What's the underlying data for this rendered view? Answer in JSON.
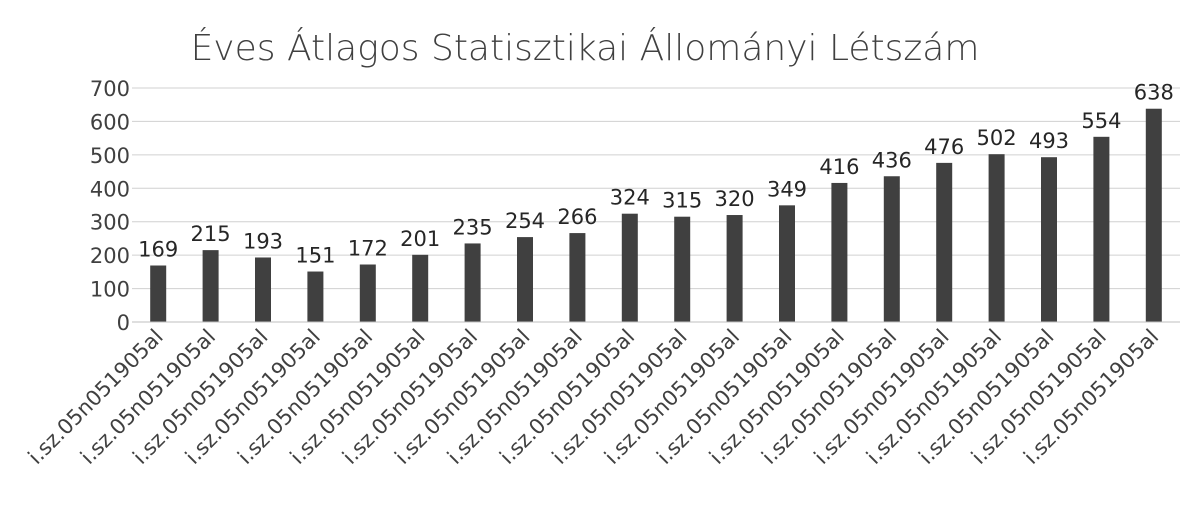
{
  "chart_data": {
    "type": "bar",
    "title": "Éves Átlagos Statisztikai Állományi Létszám",
    "xlabel": "",
    "ylabel": "",
    "categories": [
      "i.sz.05n051905al",
      "i.sz.05n051905al",
      "i.sz.05n051905al",
      "i.sz.05n051905al",
      "i.sz.05n051905al",
      "i.sz.05n051905al",
      "i.sz.05n051905al",
      "i.sz.05n051905al",
      "i.sz.05n051905al",
      "i.sz.05n051905al",
      "i.sz.05n051905al",
      "i.sz.05n051905al",
      "i.sz.05n051905al",
      "i.sz.05n051905al",
      "i.sz.05n051905al",
      "i.sz.05n051905al",
      "i.sz.05n051905al",
      "i.sz.05n051905al",
      "i.sz.05n051905al",
      "i.sz.05n051905al"
    ],
    "values": [
      169,
      215,
      193,
      151,
      172,
      201,
      235,
      254,
      266,
      324,
      315,
      320,
      349,
      416,
      436,
      476,
      502,
      493,
      554,
      638
    ],
    "ylim": [
      0,
      700
    ],
    "yticks": [
      "0",
      "100",
      "200",
      "300",
      "400",
      "500",
      "600",
      "700"
    ],
    "grid": true,
    "legend": "none",
    "data_labels": true,
    "bar_color": "#404040"
  }
}
